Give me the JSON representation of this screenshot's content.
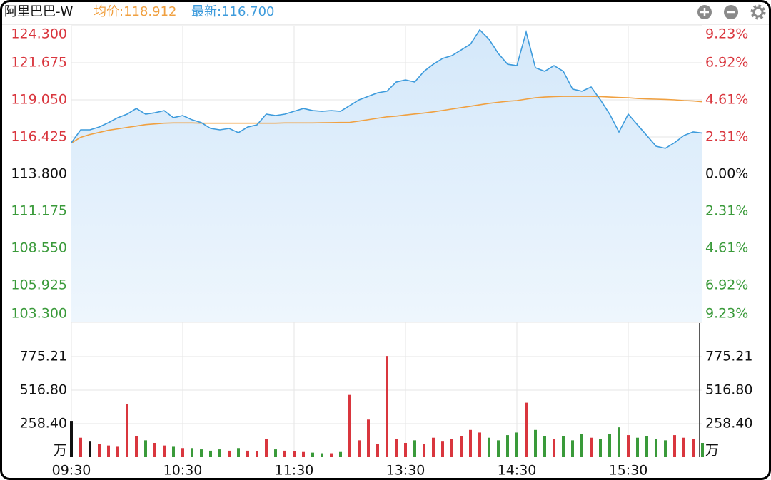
{
  "chart_data": {
    "type": "line",
    "title": "阿里巴巴-W",
    "avg_label": "均价:118.912",
    "last_label": "最新:116.700",
    "x": [
      "09:30",
      "09:35",
      "09:40",
      "09:45",
      "09:50",
      "09:55",
      "10:00",
      "10:05",
      "10:10",
      "10:15",
      "10:20",
      "10:25",
      "10:30",
      "10:35",
      "10:40",
      "10:45",
      "10:50",
      "10:55",
      "11:00",
      "11:05",
      "11:10",
      "11:15",
      "11:20",
      "11:25",
      "11:30",
      "11:35",
      "11:40",
      "11:45",
      "11:50",
      "11:55",
      "12:00",
      "13:05",
      "13:10",
      "13:15",
      "13:20",
      "13:25",
      "13:30",
      "13:35",
      "13:40",
      "13:45",
      "13:50",
      "13:55",
      "14:00",
      "14:05",
      "14:10",
      "14:15",
      "14:20",
      "14:25",
      "14:30",
      "14:35",
      "14:40",
      "14:45",
      "14:50",
      "14:55",
      "15:00",
      "15:05",
      "15:10",
      "15:15",
      "15:20",
      "15:25",
      "15:30",
      "15:35",
      "15:40",
      "15:45",
      "15:50",
      "15:55",
      "16:00",
      "16:05",
      "16:10"
    ],
    "xticks": [
      "09:30",
      "10:30",
      "11:30",
      "13:30",
      "14:30",
      "15:30"
    ],
    "series": [
      {
        "name": "最新",
        "color": "#3d9bdc",
        "values": [
          116.02,
          116.93,
          116.93,
          117.13,
          117.44,
          117.79,
          118.04,
          118.44,
          118.04,
          118.14,
          118.29,
          117.79,
          117.94,
          117.64,
          117.44,
          117.03,
          116.93,
          117.03,
          116.73,
          117.13,
          117.28,
          118.04,
          117.94,
          118.04,
          118.24,
          118.44,
          118.29,
          118.24,
          118.29,
          118.24,
          118.65,
          119.05,
          119.3,
          119.55,
          119.66,
          120.31,
          120.46,
          120.31,
          121.07,
          121.57,
          121.98,
          122.18,
          122.58,
          122.99,
          124.0,
          123.34,
          122.33,
          121.57,
          121.47,
          123.85,
          121.32,
          121.07,
          121.47,
          121.07,
          119.81,
          119.66,
          119.96,
          119.05,
          118.04,
          116.78,
          118.04,
          117.28,
          116.53,
          115.77,
          115.62,
          116.02,
          116.53,
          116.78,
          116.7
        ]
      },
      {
        "name": "均价",
        "color": "#f0a040",
        "values": [
          116.0,
          116.4,
          116.6,
          116.75,
          116.9,
          117.0,
          117.1,
          117.2,
          117.3,
          117.35,
          117.4,
          117.42,
          117.42,
          117.42,
          117.4,
          117.4,
          117.4,
          117.4,
          117.4,
          117.4,
          117.4,
          117.4,
          117.4,
          117.42,
          117.42,
          117.42,
          117.42,
          117.43,
          117.44,
          117.45,
          117.46,
          117.55,
          117.65,
          117.75,
          117.85,
          117.9,
          117.98,
          118.05,
          118.12,
          118.2,
          118.3,
          118.4,
          118.5,
          118.6,
          118.7,
          118.8,
          118.88,
          118.95,
          119.0,
          119.1,
          119.2,
          119.25,
          119.28,
          119.3,
          119.3,
          119.3,
          119.3,
          119.28,
          119.25,
          119.22,
          119.2,
          119.15,
          119.12,
          119.1,
          119.08,
          119.05,
          119.0,
          118.97,
          118.912
        ]
      }
    ],
    "fill_color": "#dcecfa",
    "ylim": [
      103.3,
      124.3
    ],
    "yticks": [
      {
        "value": 124.3,
        "label": "124.300"
      },
      {
        "value": 121.675,
        "label": "121.675"
      },
      {
        "value": 119.05,
        "label": "119.050"
      },
      {
        "value": 116.425,
        "label": "116.425"
      },
      {
        "value": 113.8,
        "label": "113.800"
      },
      {
        "value": 111.175,
        "label": "111.175"
      },
      {
        "value": 108.55,
        "label": "108.550"
      },
      {
        "value": 105.925,
        "label": "105.925"
      },
      {
        "value": 103.3,
        "label": "103.300"
      }
    ],
    "y2lim": [
      -9.23,
      9.23
    ],
    "y2ticks": [
      {
        "value": 9.23,
        "label": "9.23%"
      },
      {
        "value": 6.92,
        "label": "6.92%"
      },
      {
        "value": 4.61,
        "label": "4.61%"
      },
      {
        "value": 2.31,
        "label": "2.31%"
      },
      {
        "value": 0,
        "label": "0.00%"
      },
      {
        "value": -2.31,
        "label": "2.31%"
      },
      {
        "value": -4.61,
        "label": "4.61%"
      },
      {
        "value": -6.92,
        "label": "6.92%"
      },
      {
        "value": -9.23,
        "label": "9.23%"
      }
    ],
    "up_color": "#d9363e",
    "down_color": "#3a9a3a",
    "flat_color": "#111111",
    "grid": true,
    "volume": {
      "type": "bar",
      "unit": "万",
      "values": [
        280,
        150,
        120,
        100,
        90,
        80,
        410,
        160,
        130,
        110,
        90,
        80,
        70,
        70,
        60,
        50,
        60,
        50,
        70,
        50,
        45,
        140,
        60,
        50,
        45,
        40,
        35,
        30,
        30,
        40,
        480,
        130,
        290,
        100,
        780,
        140,
        110,
        130,
        100,
        150,
        120,
        140,
        160,
        210,
        190,
        150,
        130,
        170,
        190,
        420,
        210,
        160,
        140,
        160,
        130,
        180,
        150,
        140,
        180,
        230,
        170,
        150,
        160,
        140,
        130,
        170,
        150,
        140,
        110
      ],
      "ylim": [
        0,
        1033.6
      ],
      "yticks": [
        {
          "value": 775.21,
          "label": "775.21"
        },
        {
          "value": 516.8,
          "label": "516.80"
        },
        {
          "value": 258.4,
          "label": "258.40"
        }
      ]
    }
  }
}
